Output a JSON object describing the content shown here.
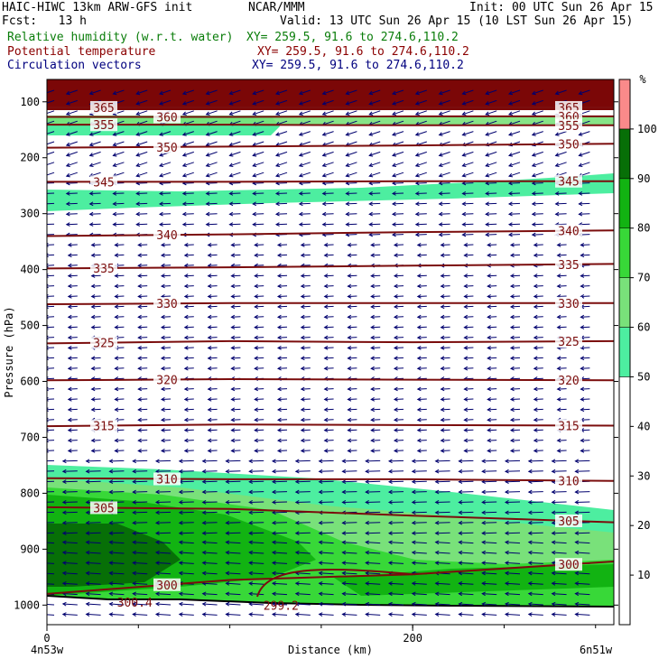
{
  "header": {
    "title": "HAIC-HIWC 13km ARW-GFS init",
    "org": "NCAR/MMM",
    "init": "Init: 00 UTC Sun 26 Apr 15",
    "fcst": "Fcst:   13 h",
    "valid": "Valid: 13 UTC Sun 26 Apr 15 (10 LST Sun 26 Apr 15)",
    "field1": "Relative humidity (w.r.t. water)",
    "field1_xy": "XY= 259.5, 91.6 to 274.6,110.2",
    "field2": "Potential temperature",
    "field2_xy": "XY= 259.5, 91.6 to 274.6,110.2",
    "field3": "Circulation vectors",
    "field3_xy": "XY= 259.5, 91.6 to 274.6,110.2"
  },
  "colors": {
    "rh_50_60": "#4deea0",
    "rh_60_70": "#79e17a",
    "rh_70_80": "#38d838",
    "rh_80_90": "#12b312",
    "rh_90_100": "#076f07",
    "rh_100_110": "#fa8a8a",
    "above_top": "#7b0707",
    "theta_contour": "#7b0d0d",
    "vectors": "#00006e"
  },
  "chart_data": {
    "type": "heatmap",
    "xlabel": "Distance (km)",
    "ylabel": "Pressure (hPa)",
    "x_ticks": [
      0,
      200
    ],
    "x_start_label": "4n53w",
    "x_end_label": "6n51w",
    "xlim": [
      0,
      310
    ],
    "y_ticks": [
      100,
      200,
      300,
      400,
      500,
      600,
      700,
      800,
      900,
      1000
    ],
    "ylim": [
      1035,
      60
    ],
    "colorbar": {
      "unit": "%",
      "ticks": [
        10,
        20,
        30,
        40,
        50,
        60,
        70,
        80,
        90,
        100
      ],
      "levels": [
        0,
        50,
        60,
        70,
        80,
        90,
        100,
        110
      ]
    },
    "theta_contours": [
      {
        "label": "365",
        "pressure": [
          110,
          110,
          110,
          110
        ]
      },
      {
        "label": "360",
        "pressure": [
          127,
          127,
          126,
          126
        ]
      },
      {
        "label": "355",
        "pressure": [
          141,
          141,
          142,
          142
        ]
      },
      {
        "label": "350",
        "pressure": [
          182,
          180,
          178,
          175
        ]
      },
      {
        "label": "345",
        "pressure": [
          243,
          243,
          242,
          242
        ]
      },
      {
        "label": "340",
        "pressure": [
          340,
          337,
          333,
          330
        ]
      },
      {
        "label": "335",
        "pressure": [
          398,
          396,
          393,
          390
        ]
      },
      {
        "label": "330",
        "pressure": [
          462,
          460,
          460,
          460
        ]
      },
      {
        "label": "325",
        "pressure": [
          532,
          528,
          530,
          528
        ]
      },
      {
        "label": "320",
        "pressure": [
          598,
          596,
          597,
          598
        ]
      },
      {
        "label": "315",
        "pressure": [
          680,
          677,
          678,
          679
        ]
      },
      {
        "label": "310",
        "pressure": [
          773,
          775,
          775,
          778
        ]
      },
      {
        "label": "305",
        "pressure": [
          825,
          828,
          840,
          852
        ]
      },
      {
        "label": "300",
        "pressure": [
          980,
          955,
          945,
          922
        ]
      }
    ],
    "contour_x": [
      0,
      100,
      200,
      310
    ],
    "special_labels": [
      {
        "label": "300.4",
        "x": 48,
        "pressure": 995
      },
      {
        "label": "299.2",
        "x": 128,
        "pressure": 1000
      }
    ],
    "vectors": {
      "upper_wind": "easterly",
      "lower_wind": "easterly"
    }
  }
}
